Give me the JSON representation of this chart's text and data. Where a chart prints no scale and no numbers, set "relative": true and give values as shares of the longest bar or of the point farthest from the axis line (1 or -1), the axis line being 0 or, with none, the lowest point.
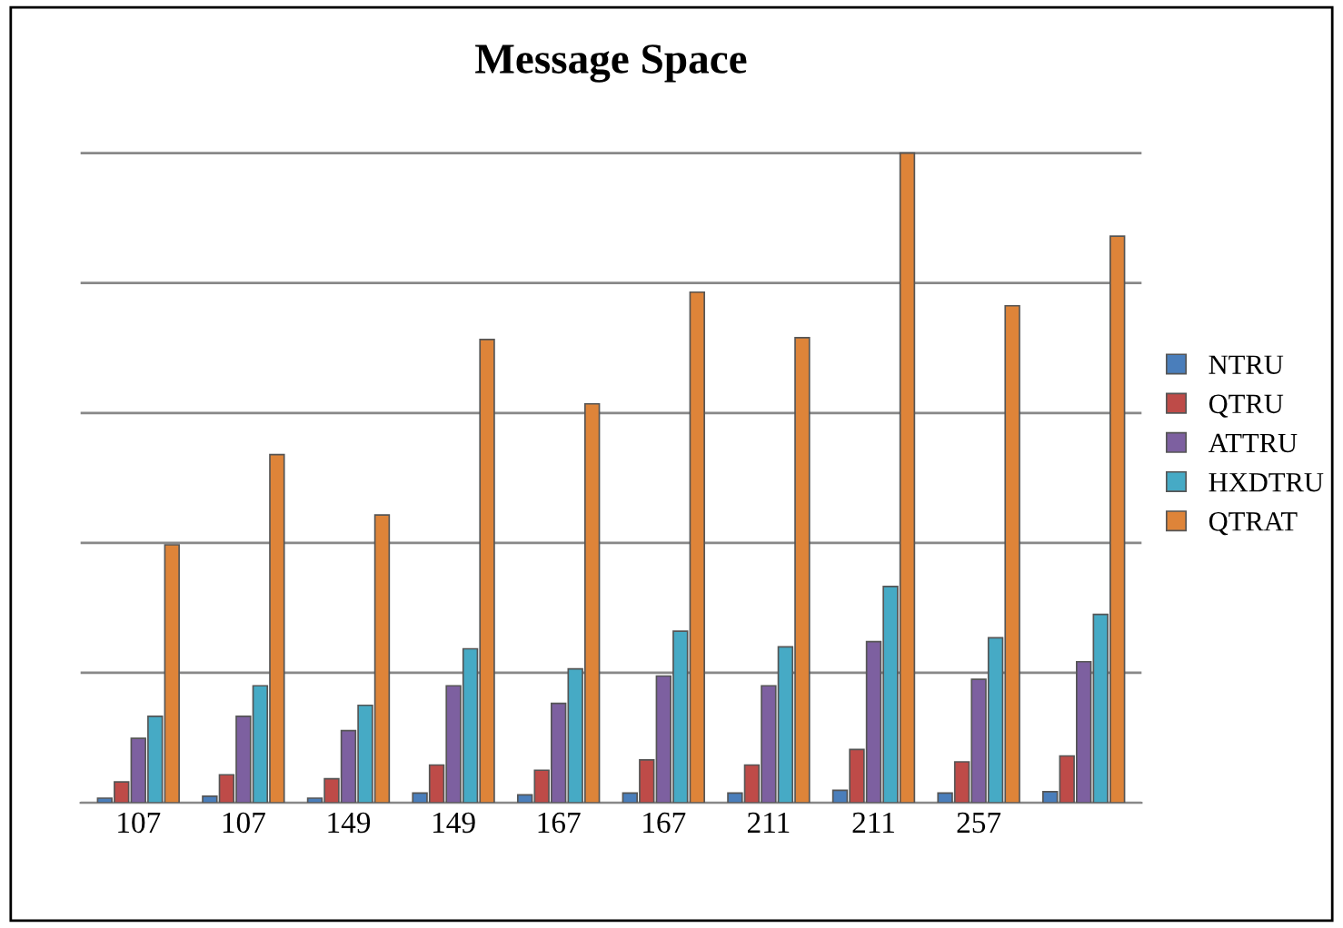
{
  "chart_data": {
    "type": "bar",
    "title": "Message Space",
    "relative": true,
    "grid": "y",
    "legend": "right",
    "tick_labels": "x",
    "categories": [
      "107",
      "107",
      "149",
      "149",
      "167",
      "167",
      "211",
      "211",
      "257",
      null
    ],
    "series": [
      {
        "name": "NTRU",
        "color": "#4a7ebb",
        "values": [
          0.007,
          0.01,
          0.007,
          0.015,
          0.012,
          0.015,
          0.015,
          0.019,
          0.015,
          0.017
        ]
      },
      {
        "name": "QTRU",
        "color": "#be4b48",
        "values": [
          0.032,
          0.043,
          0.037,
          0.058,
          0.05,
          0.066,
          0.058,
          0.082,
          0.063,
          0.072
        ]
      },
      {
        "name": "ATTRU",
        "color": "#7d60a0",
        "values": [
          0.099,
          0.133,
          0.111,
          0.18,
          0.153,
          0.195,
          0.18,
          0.248,
          0.19,
          0.217
        ]
      },
      {
        "name": "HXDTRU",
        "color": "#46aac5",
        "values": [
          0.133,
          0.18,
          0.15,
          0.237,
          0.206,
          0.264,
          0.24,
          0.333,
          0.254,
          0.29
        ]
      },
      {
        "name": "QTRAT",
        "color": "#de8439",
        "values": [
          0.397,
          0.536,
          0.443,
          0.713,
          0.614,
          0.786,
          0.716,
          1.0,
          0.765,
          0.872
        ]
      }
    ]
  }
}
